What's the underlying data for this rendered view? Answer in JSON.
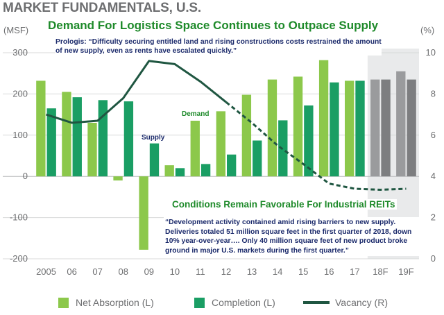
{
  "header": {
    "title": "MARKET FUNDAMENTALS, U.S.",
    "unit_left": "(MSF)",
    "unit_right": "(%)",
    "headline": "Demand For Logistics Space Continues to Outpace Supply"
  },
  "annotations": {
    "quote_top": "Prologis: “Difficulty securing entitled land and rising constructions costs restrained the amount of new supply, even as rents have escalated quickly.”",
    "sub_headline": "Conditions Remain Favorable For Industrial REITs",
    "quote_bottom": "“Development activity contained amid rising barriers to new supply. Deliveries totaled 51 million square feet in the first quarter of 2018, down 10% year-over-year…. Only 40 million square feet of new product broke ground in major U.S. markets during the first quarter.”",
    "supply_label": "Supply",
    "demand_label": "Demand"
  },
  "legend": {
    "absorption": "Net Absorption (L)",
    "completion": "Completion (L)",
    "vacancy": "Vacancy (R)"
  },
  "colors": {
    "absorption": "#8cc84b",
    "completion": "#1a9e64",
    "vacancy": "#1f5641",
    "forecast_absorption": "#9a9b9d",
    "forecast_completion": "#7d7e80",
    "forecast_bg": "#e9eaeb",
    "axis_text": "#6d6e70"
  },
  "chart_data": {
    "type": "bar",
    "categories": [
      "2005",
      "06",
      "07",
      "08",
      "09",
      "10",
      "11",
      "12",
      "13",
      "14",
      "15",
      "16",
      "17",
      "18F",
      "19F"
    ],
    "forecast_categories": [
      "18F",
      "19F"
    ],
    "series": [
      {
        "name": "Net Absorption (L)",
        "type": "bar",
        "axis": "left",
        "values": [
          232,
          205,
          130,
          -10,
          -178,
          27,
          135,
          158,
          198,
          235,
          242,
          282,
          232,
          235,
          255
        ]
      },
      {
        "name": "Completion (L)",
        "type": "bar",
        "axis": "left",
        "values": [
          165,
          192,
          185,
          182,
          80,
          20,
          30,
          53,
          87,
          136,
          172,
          228,
          232,
          235,
          235
        ]
      },
      {
        "name": "Vacancy (R)",
        "type": "line",
        "axis": "right",
        "values": [
          7.0,
          6.6,
          6.7,
          7.8,
          9.6,
          9.45,
          8.6,
          7.6,
          6.6,
          5.5,
          4.6,
          3.65,
          3.4,
          3.35,
          3.4
        ]
      }
    ],
    "y_left": {
      "ticks": [
        300,
        200,
        100,
        0,
        -100,
        -200
      ],
      "range": [
        -200,
        300
      ]
    },
    "y_right": {
      "ticks": [
        10,
        8,
        6,
        4,
        2,
        0
      ],
      "range": [
        0,
        10
      ]
    },
    "grid": true,
    "legend_position": "bottom"
  }
}
